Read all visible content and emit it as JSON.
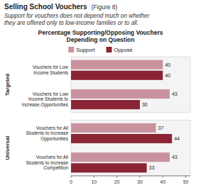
{
  "chart_data": {
    "type": "bar",
    "orientation": "horizontal",
    "title": "Selling School Vouchers",
    "title_note": "(Figure 8)",
    "subtitle": "Support for vouchers does not depend much on whether\nthey are offered only to low-income families or to all.",
    "chart_title": "Percentage Supporting/Opposing Vouchers\nDepending on Question",
    "categories": [
      "Vouchers for Low\nIncome Students",
      "Vouchers for Low\nIncome Students to\nIncrease Opportunities",
      "Vouchers for All\nStudents to Increase\nOpportunities",
      "Vouchers for All\nStudents to Increase\nCompetition"
    ],
    "groups": [
      "Targeted",
      "Targeted",
      "Universal",
      "Universal"
    ],
    "series": [
      {
        "name": "Support",
        "color": "#c9929f",
        "values": [
          40,
          43,
          37,
          43
        ]
      },
      {
        "name": "Oppose",
        "color": "#8b2535",
        "values": [
          40,
          30,
          44,
          33
        ]
      }
    ],
    "xlim": [
      0,
      52
    ],
    "xticks": [
      0,
      10,
      20,
      30,
      40,
      50
    ],
    "data_labels": true,
    "legend": "top"
  }
}
